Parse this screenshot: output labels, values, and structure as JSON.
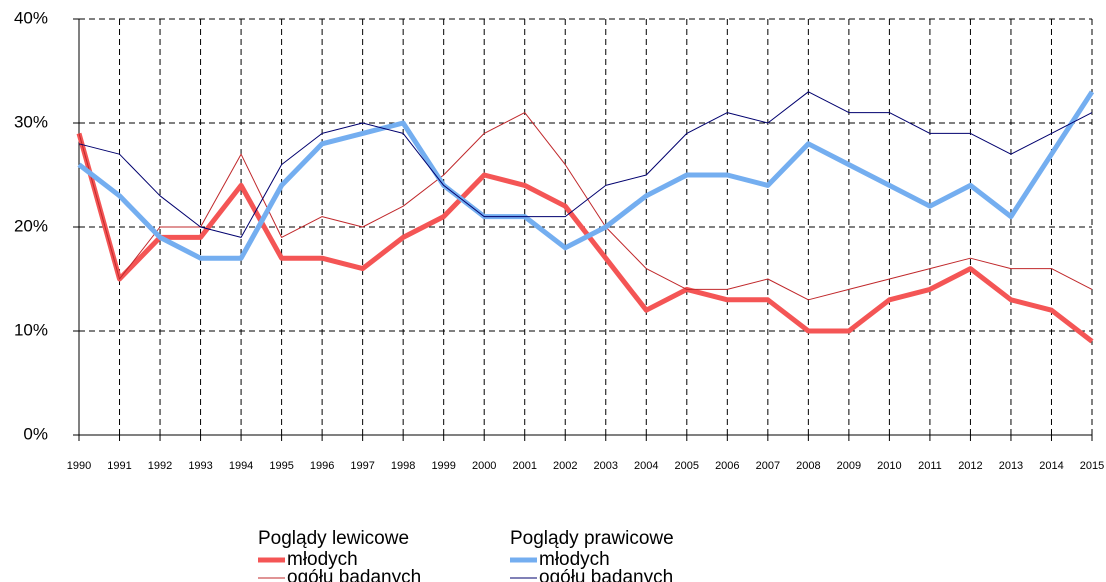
{
  "chart_data": {
    "type": "line",
    "categories": [
      "1990",
      "1991",
      "1992",
      "1993",
      "1994",
      "1995",
      "1996",
      "1997",
      "1998",
      "1999",
      "2000",
      "2001",
      "2002",
      "2003",
      "2004",
      "2005",
      "2006",
      "2007",
      "2008",
      "2009",
      "2010",
      "2011",
      "2012",
      "2013",
      "2014",
      "2015"
    ],
    "legend_groups": [
      "Poglądy lewicowe",
      "Poglądy prawicowe"
    ],
    "series": [
      {
        "name": "młodych",
        "color": "#f45555",
        "values": [
          29,
          15,
          19,
          19,
          24,
          17,
          17,
          16,
          19,
          21,
          25,
          24,
          22,
          17,
          12,
          14,
          13,
          13,
          10,
          10,
          13,
          14,
          16,
          13,
          12,
          9
        ]
      },
      {
        "name": "ogółu badanych",
        "color": "#c0282b",
        "values": [
          29,
          15,
          20,
          20,
          27,
          19,
          21,
          20,
          22,
          25,
          29,
          31,
          26,
          20,
          16,
          14,
          14,
          15,
          13,
          14,
          15,
          16,
          17,
          16,
          16,
          14
        ]
      },
      {
        "name": "młodych",
        "color": "#74aef0",
        "values": [
          26,
          23,
          19,
          17,
          17,
          24,
          28,
          29,
          30,
          24,
          21,
          21,
          18,
          20,
          23,
          25,
          25,
          24,
          28,
          26,
          24,
          22,
          24,
          21,
          27,
          33
        ]
      },
      {
        "name": "ogółu badanych",
        "color": "#00006e",
        "values": [
          28,
          27,
          23,
          20,
          19,
          26,
          29,
          30,
          29,
          24,
          21,
          21,
          21,
          24,
          25,
          29,
          31,
          30,
          33,
          31,
          31,
          29,
          29,
          27,
          29,
          31
        ]
      }
    ],
    "ylim": [
      0,
      40
    ],
    "yticks": [
      {
        "value": 0,
        "label": "0%"
      },
      {
        "value": 10,
        "label": "10%"
      },
      {
        "value": 20,
        "label": "20%"
      },
      {
        "value": 30,
        "label": "30%"
      },
      {
        "value": 40,
        "label": "40%"
      }
    ],
    "grid": true
  }
}
